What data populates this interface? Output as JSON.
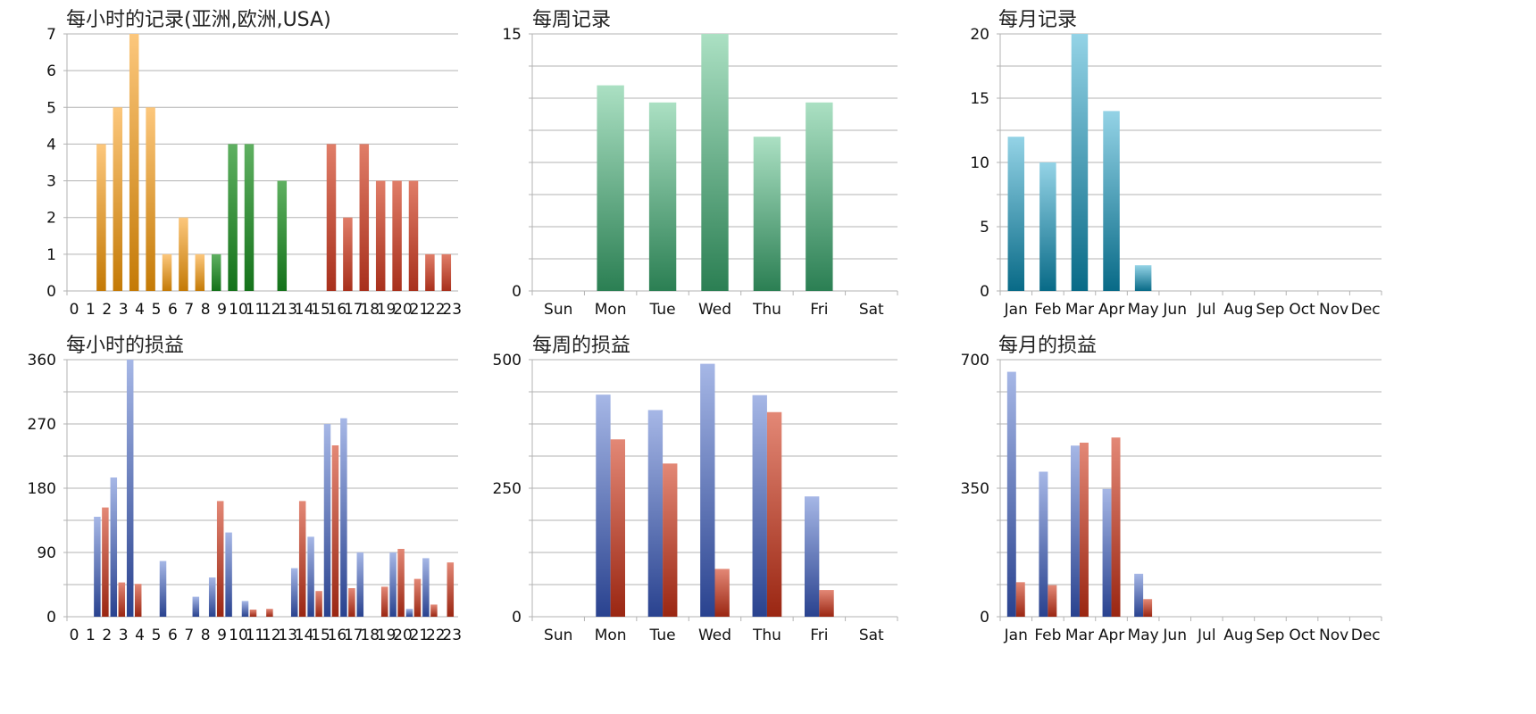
{
  "charts": [
    {
      "title": "每小时的记录(亚洲,欧洲,USA)",
      "type": "bar",
      "ylim": [
        0,
        7
      ],
      "yticks": [
        0,
        1,
        2,
        3,
        4,
        5,
        6,
        7
      ],
      "categories": [
        "0",
        "1",
        "2",
        "3",
        "4",
        "5",
        "6",
        "7",
        "8",
        "9",
        "10",
        "11",
        "12",
        "13",
        "14",
        "15",
        "16",
        "17",
        "18",
        "19",
        "20",
        "21",
        "22",
        "23"
      ],
      "series": [
        {
          "values": [
            0,
            4,
            5,
            7,
            5,
            1,
            2,
            1,
            1,
            4,
            4,
            0,
            3,
            0,
            0,
            4,
            2,
            4,
            3,
            3,
            3,
            1,
            1,
            0
          ],
          "point_groups": [
            "o",
            "o",
            "o",
            "o",
            "o",
            "o",
            "o",
            "o",
            "g",
            "g",
            "g",
            "g",
            "g",
            "g",
            "r",
            "r",
            "r",
            "r",
            "r",
            "r",
            "r",
            "r",
            "r",
            "r"
          ]
        }
      ],
      "group_colors": {
        "o": [
          "#fcc77c",
          "#c47a06"
        ],
        "g": [
          "#5fb061",
          "#14721a"
        ],
        "r": [
          "#e07d68",
          "#a8301c"
        ]
      }
    },
    {
      "title": "每周记录",
      "type": "bar",
      "ylim": [
        0,
        15
      ],
      "yticks": [
        0,
        15
      ],
      "grid_lines": 8,
      "categories": [
        "Sun",
        "Mon",
        "Tue",
        "Wed",
        "Thu",
        "Fri",
        "Sat"
      ],
      "series": [
        {
          "values": [
            0,
            12,
            11,
            15,
            9,
            11,
            0
          ],
          "colors": [
            "#abe0c3",
            "#2b7f53"
          ]
        }
      ]
    },
    {
      "title": "每月记录",
      "type": "bar",
      "ylim": [
        0,
        20
      ],
      "yticks": [
        0,
        5,
        10,
        15,
        20
      ],
      "grid_lines": 8,
      "categories": [
        "Jan",
        "Feb",
        "Mar",
        "Apr",
        "May",
        "Jun",
        "Jul",
        "Aug",
        "Sep",
        "Oct",
        "Nov",
        "Dec"
      ],
      "series": [
        {
          "values": [
            12,
            10,
            20,
            14,
            2,
            0,
            0,
            0,
            0,
            0,
            0,
            0
          ],
          "colors": [
            "#94d3e6",
            "#086a87"
          ]
        }
      ]
    },
    {
      "title": "每小时的损益",
      "type": "bar",
      "ylim": [
        0,
        360
      ],
      "yticks": [
        0,
        90,
        180,
        270,
        360
      ],
      "grid_lines": 8,
      "categories": [
        "0",
        "1",
        "2",
        "3",
        "4",
        "5",
        "6",
        "7",
        "8",
        "9",
        "10",
        "11",
        "12",
        "13",
        "14",
        "15",
        "16",
        "17",
        "18",
        "19",
        "20",
        "21",
        "22",
        "23"
      ],
      "series": [
        {
          "values": [
            0,
            140,
            195,
            360,
            0,
            78,
            0,
            28,
            55,
            118,
            22,
            0,
            0,
            68,
            112,
            270,
            278,
            90,
            0,
            90,
            11,
            82,
            0,
            0
          ],
          "colors": [
            "#a6b7e6",
            "#29428f"
          ]
        },
        {
          "values": [
            0,
            153,
            48,
            46,
            0,
            0,
            0,
            0,
            162,
            0,
            10,
            11,
            0,
            162,
            36,
            240,
            40,
            0,
            42,
            95,
            53,
            17,
            76,
            0
          ],
          "colors": [
            "#e38876",
            "#9a2612"
          ]
        }
      ]
    },
    {
      "title": "每周的损益",
      "type": "bar",
      "ylim": [
        0,
        500
      ],
      "yticks": [
        0,
        250,
        500
      ],
      "grid_lines": 8,
      "categories": [
        "Sun",
        "Mon",
        "Tue",
        "Wed",
        "Thu",
        "Fri",
        "Sat"
      ],
      "series": [
        {
          "values": [
            0,
            432,
            402,
            492,
            431,
            234,
            0
          ],
          "colors": [
            "#a6b7e6",
            "#29428f"
          ]
        },
        {
          "values": [
            0,
            345,
            298,
            93,
            398,
            52,
            0
          ],
          "colors": [
            "#e38876",
            "#9a2612"
          ]
        }
      ]
    },
    {
      "title": "每月的损益",
      "type": "bar",
      "ylim": [
        0,
        700
      ],
      "yticks": [
        0,
        350,
        700
      ],
      "grid_lines": 8,
      "categories": [
        "Jan",
        "Feb",
        "Mar",
        "Apr",
        "May",
        "Jun",
        "Jul",
        "Aug",
        "Sep",
        "Oct",
        "Nov",
        "Dec"
      ],
      "series": [
        {
          "values": [
            667,
            395,
            466,
            348,
            117,
            0,
            0,
            0,
            0,
            0,
            0,
            0
          ],
          "colors": [
            "#a6b7e6",
            "#29428f"
          ]
        },
        {
          "values": [
            94,
            86,
            474,
            488,
            48,
            0,
            0,
            0,
            0,
            0,
            0,
            0
          ],
          "colors": [
            "#e38876",
            "#9a2612"
          ]
        }
      ]
    }
  ]
}
